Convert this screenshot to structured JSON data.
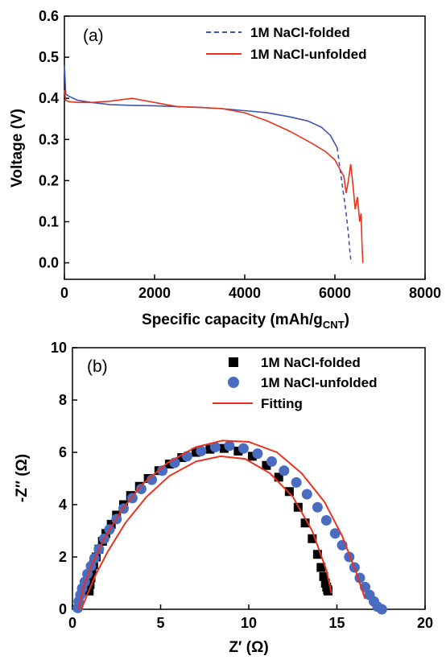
{
  "chart_data": [
    {
      "type": "line",
      "panel_label": "(a)",
      "xlabel": "Specific capacity (mAh/g",
      "xlabel_sub": "CNT",
      "xlabel_end": ")",
      "ylabel": "Voltage (V)",
      "xlim": [
        0,
        8000
      ],
      "ylim": [
        -0.04,
        0.6
      ],
      "xticks": [
        "0",
        "2000",
        "4000",
        "6000",
        "8000"
      ],
      "yticks": [
        "0.0",
        "0.1",
        "0.2",
        "0.3",
        "0.4",
        "0.5",
        "0.6"
      ],
      "legend_position": "top-right",
      "series": [
        {
          "name": "1M NaCl-folded",
          "color": "#3a55b4",
          "style": "solid-then-dashed",
          "x": [
            0,
            30,
            100,
            300,
            600,
            1000,
            1500,
            2000,
            2500,
            3000,
            3500,
            4000,
            4500,
            5000,
            5400,
            5700,
            5900,
            6050,
            6100,
            6150,
            6200,
            6250,
            6300,
            6330,
            6360
          ],
          "y": [
            0.48,
            0.41,
            0.405,
            0.395,
            0.39,
            0.385,
            0.383,
            0.382,
            0.38,
            0.378,
            0.375,
            0.37,
            0.365,
            0.355,
            0.345,
            0.33,
            0.31,
            0.28,
            0.24,
            0.2,
            0.16,
            0.12,
            0.07,
            0.03,
            0.0
          ]
        },
        {
          "name": "1M NaCl-unfolded",
          "color": "#e8321e",
          "style": "solid",
          "x": [
            0,
            30,
            100,
            300,
            600,
            1000,
            1500,
            2000,
            2500,
            3000,
            3500,
            4000,
            4500,
            5000,
            5500,
            5800,
            6000,
            6100,
            6200,
            6250,
            6300,
            6350,
            6400,
            6450,
            6500,
            6550,
            6580,
            6600,
            6620
          ],
          "y": [
            0.42,
            0.395,
            0.392,
            0.39,
            0.39,
            0.393,
            0.4,
            0.39,
            0.38,
            0.378,
            0.375,
            0.365,
            0.345,
            0.32,
            0.29,
            0.27,
            0.25,
            0.23,
            0.21,
            0.17,
            0.2,
            0.24,
            0.19,
            0.13,
            0.16,
            0.1,
            0.12,
            0.05,
            0.0
          ]
        }
      ]
    },
    {
      "type": "scatter",
      "panel_label": "(b)",
      "xlabel": "Z′ (Ω)",
      "ylabel": "-Z″ (Ω)",
      "xlim": [
        0,
        20
      ],
      "ylim": [
        0,
        10
      ],
      "xticks": [
        "0",
        "5",
        "10",
        "15",
        "20"
      ],
      "yticks": [
        "0",
        "2",
        "4",
        "6",
        "8",
        "10"
      ],
      "legend_position": "top-right",
      "series": [
        {
          "name": "1M NaCl-folded",
          "color": "#000000",
          "marker": "square",
          "x": [
            0.95,
            1.0,
            1.05,
            1.1,
            1.2,
            1.35,
            1.5,
            1.7,
            1.9,
            2.2,
            2.5,
            2.9,
            3.3,
            3.8,
            4.3,
            4.9,
            5.5,
            6.2,
            7.0,
            7.8,
            8.6,
            9.4,
            10.2,
            11.0,
            11.7,
            12.3,
            12.8,
            13.2,
            13.6,
            13.9,
            14.1,
            14.25,
            14.35,
            14.42,
            14.47,
            14.5
          ],
          "y": [
            0.7,
            0.95,
            1.2,
            1.45,
            1.7,
            2.0,
            2.3,
            2.6,
            2.9,
            3.25,
            3.6,
            4.0,
            4.35,
            4.7,
            5.0,
            5.3,
            5.55,
            5.8,
            6.0,
            6.12,
            6.15,
            6.05,
            5.85,
            5.5,
            5.05,
            4.5,
            3.9,
            3.3,
            2.7,
            2.1,
            1.6,
            1.25,
            1.0,
            0.85,
            0.75,
            0.7
          ]
        },
        {
          "name": "1M NaCl-unfolded",
          "color": "#4a6cc0",
          "marker": "circle",
          "x": [
            0.3,
            0.35,
            0.45,
            0.55,
            0.7,
            0.85,
            1.05,
            1.25,
            1.5,
            1.8,
            2.1,
            2.5,
            2.9,
            3.4,
            3.9,
            4.5,
            5.1,
            5.8,
            6.5,
            7.3,
            8.1,
            8.9,
            9.7,
            10.5,
            11.3,
            12.0,
            12.7,
            13.3,
            13.9,
            14.4,
            14.9,
            15.3,
            15.7,
            16.0,
            16.3,
            16.6,
            16.85,
            17.1,
            17.3,
            17.55
          ],
          "y": [
            0.05,
            0.3,
            0.55,
            0.8,
            1.05,
            1.35,
            1.65,
            1.95,
            2.3,
            2.7,
            3.05,
            3.45,
            3.85,
            4.25,
            4.6,
            4.95,
            5.3,
            5.6,
            5.85,
            6.05,
            6.2,
            6.25,
            6.15,
            5.95,
            5.65,
            5.3,
            4.85,
            4.4,
            3.9,
            3.4,
            2.9,
            2.45,
            2.0,
            1.6,
            1.2,
            0.85,
            0.55,
            0.3,
            0.1,
            0.0
          ]
        },
        {
          "name": "Fitting",
          "color": "#e8321e",
          "marker": "line",
          "curves": [
            {
              "x": [
                0.5,
                0.8,
                1.3,
                2.0,
                3.0,
                4.2,
                5.5,
                7.0,
                8.4,
                9.8,
                11.2,
                12.5,
                13.6,
                14.4,
                14.7
              ],
              "y": [
                0.0,
                0.5,
                1.3,
                2.2,
                3.3,
                4.3,
                5.1,
                5.65,
                5.85,
                5.75,
                5.2,
                4.3,
                3.0,
                1.5,
                0.6
              ]
            },
            {
              "x": [
                0.35,
                0.6,
                1.1,
                1.8,
                2.8,
                4.0,
                5.4,
                7.0,
                8.5,
                10.0,
                11.6,
                13.0,
                14.3,
                15.3,
                16.1,
                16.6
              ],
              "y": [
                0.0,
                0.8,
                1.7,
                2.7,
                3.8,
                4.8,
                5.6,
                6.2,
                6.45,
                6.4,
                6.0,
                5.2,
                4.1,
                2.8,
                1.4,
                0.4
              ]
            }
          ]
        }
      ]
    }
  ]
}
